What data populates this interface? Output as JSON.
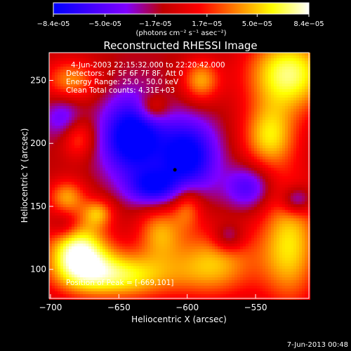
{
  "chart_data": {
    "type": "heatmap",
    "title": "Reconstructed RHESSI Image",
    "xlabel": "Heliocentric X (arcsec)",
    "ylabel": "Heliocentric Y (arcsec)",
    "xlim": [
      -701,
      -511
    ],
    "ylim": [
      77,
      272
    ],
    "x_ticks": [
      -700,
      -650,
      -600,
      -550
    ],
    "y_ticks": [
      100,
      150,
      200,
      250
    ],
    "colorbar": {
      "range": [
        -8.4e-05,
        8.4e-05
      ],
      "tick_labels": [
        "-8.4e-05",
        "-5.0e-05",
        "-1.7e-05",
        "1.7e-05",
        "5.0e-05",
        "8.4e-05"
      ],
      "unit_label": "(photons cm⁻² s⁻¹ asec⁻²)",
      "stops": [
        "#0000ff",
        "#4000ff",
        "#8000ff",
        "#c00000",
        "#ff0000",
        "#ff8000",
        "#ffff00",
        "#ffffff"
      ]
    },
    "annotations": {
      "time_range": "4-Jun-2003 22:15:32.000 to 22:20:42.000",
      "detectors": "Detectors: 4F 5F 6F 7F 8F, Att 0",
      "energy_range": "Energy Range: 25.0 - 50.0 keV",
      "clean": "Clean    Total counts: 4.31E+03",
      "peak": "Position of Peak = [-669,101]"
    },
    "marker": {
      "x": -609,
      "y": 179
    },
    "blobs": [
      {
        "x": -526,
        "y": 255,
        "v": 1.0,
        "sx": 22,
        "sy": 22
      },
      {
        "x": -590,
        "y": 250,
        "v": 0.65,
        "sx": 10,
        "sy": 12
      },
      {
        "x": -685,
        "y": 250,
        "v": 0.6,
        "sx": 14,
        "sy": 12
      },
      {
        "x": -540,
        "y": 205,
        "v": 0.75,
        "sx": 14,
        "sy": 18
      },
      {
        "x": -525,
        "y": 120,
        "v": 0.8,
        "sx": 16,
        "sy": 35
      },
      {
        "x": -580,
        "y": 105,
        "v": 0.7,
        "sx": 22,
        "sy": 20
      },
      {
        "x": -650,
        "y": 95,
        "v": 0.9,
        "sx": 30,
        "sy": 14
      },
      {
        "x": -680,
        "y": 115,
        "v": 1.05,
        "sx": 16,
        "sy": 18
      },
      {
        "x": -620,
        "y": 130,
        "v": 0.6,
        "sx": 12,
        "sy": 15
      },
      {
        "x": -600,
        "y": 150,
        "v": 0.5,
        "sx": 8,
        "sy": 12
      },
      {
        "x": -688,
        "y": 158,
        "v": 0.6,
        "sx": 10,
        "sy": 10
      },
      {
        "x": -665,
        "y": 145,
        "v": 0.55,
        "sx": 8,
        "sy": 8
      },
      {
        "x": -680,
        "y": 205,
        "v": 0.5,
        "sx": 9,
        "sy": 12
      },
      {
        "x": -625,
        "y": 228,
        "v": 0.45,
        "sx": 8,
        "sy": 8
      },
      {
        "x": -640,
        "y": 205,
        "v": -1.05,
        "sx": 16,
        "sy": 22
      },
      {
        "x": -600,
        "y": 190,
        "v": -0.95,
        "sx": 15,
        "sy": 20
      },
      {
        "x": -625,
        "y": 165,
        "v": -0.7,
        "sx": 13,
        "sy": 10
      },
      {
        "x": -555,
        "y": 165,
        "v": -0.55,
        "sx": 12,
        "sy": 12
      },
      {
        "x": -520,
        "y": 155,
        "v": -0.6,
        "sx": 8,
        "sy": 8
      },
      {
        "x": -690,
        "y": 135,
        "v": -0.35,
        "sx": 8,
        "sy": 8
      },
      {
        "x": -690,
        "y": 220,
        "v": -0.45,
        "sx": 10,
        "sy": 12
      },
      {
        "x": -570,
        "y": 125,
        "v": -0.45,
        "sx": 8,
        "sy": 8
      }
    ],
    "base_level": -0.15
  },
  "footer": {
    "timestamp": "7-Jun-2013 00:48"
  }
}
